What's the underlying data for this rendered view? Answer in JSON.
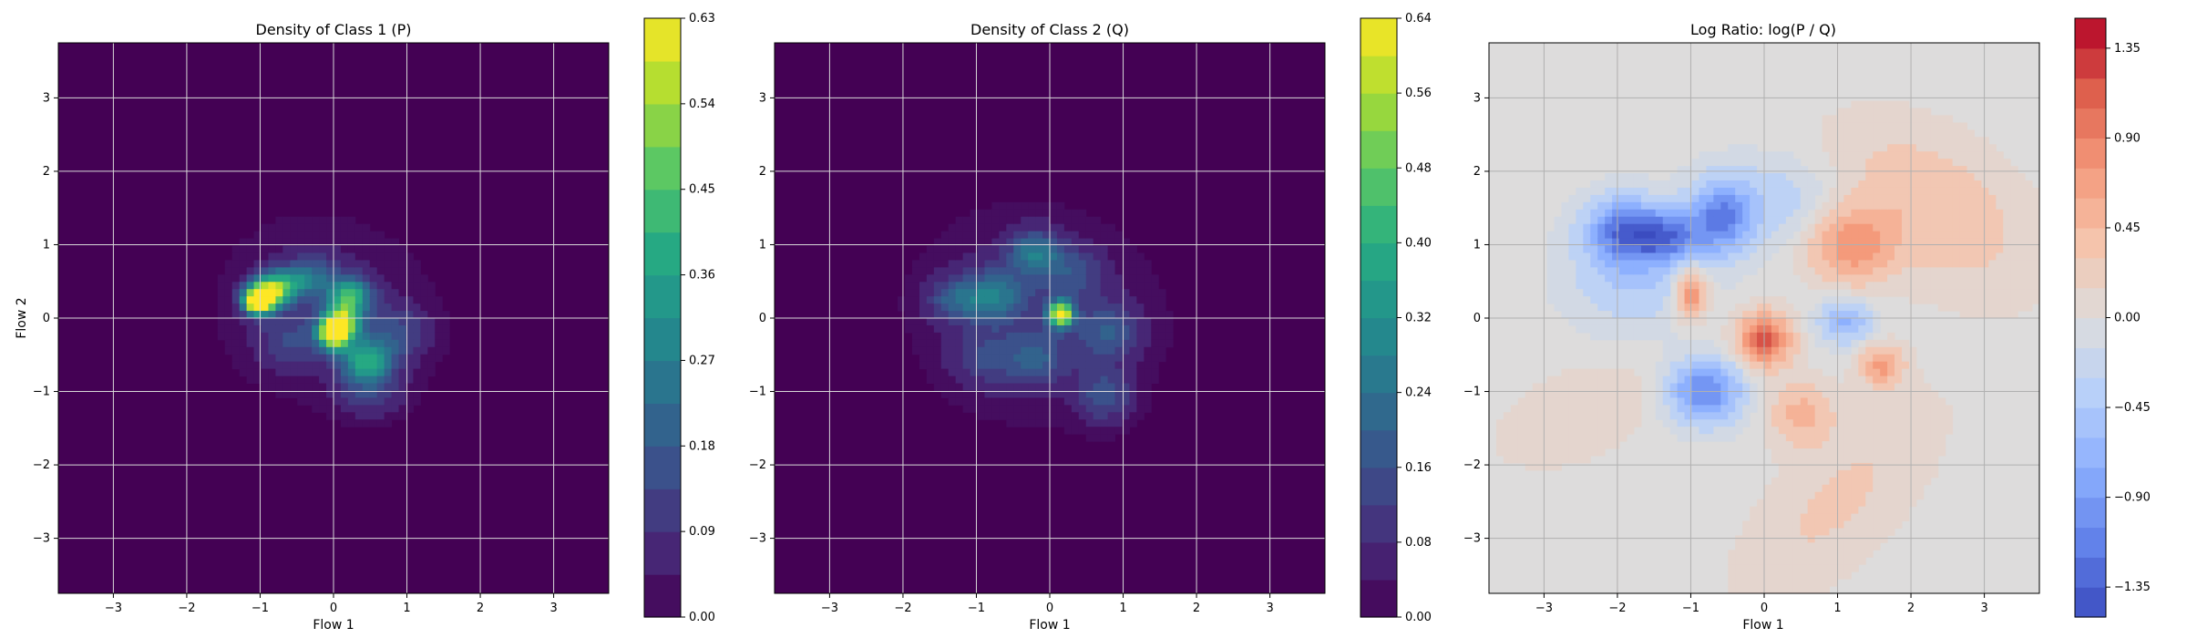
{
  "chart_data": [
    {
      "type": "heatmap",
      "title": "Density of Class 1 (P)",
      "xlabel": "Flow 1",
      "ylabel": "Flow 2",
      "xlim": [
        -3.75,
        3.75
      ],
      "ylim": [
        -3.75,
        3.75
      ],
      "xticks": [
        -3,
        -2,
        -1,
        0,
        1,
        2,
        3
      ],
      "yticks": [
        -3,
        -2,
        -1,
        0,
        1,
        2,
        3
      ],
      "grid": true,
      "colormap": "viridis",
      "colorbar": {
        "min": 0.0,
        "max": 0.63,
        "ticks": [
          "0.00",
          "0.09",
          "0.18",
          "0.27",
          "0.36",
          "0.45",
          "0.54",
          "0.63"
        ]
      },
      "background": "#440154",
      "blobs": [
        {
          "x": -0.1,
          "y": 0.1,
          "sx": 1.0,
          "sy": 0.85,
          "h": 0.06,
          "rot": -0.3
        },
        {
          "x": -0.95,
          "y": 0.3,
          "sx": 0.18,
          "sy": 0.15,
          "h": 0.58,
          "rot": 0
        },
        {
          "x": -1.05,
          "y": 0.2,
          "sx": 0.12,
          "sy": 0.1,
          "h": 0.45,
          "rot": 0
        },
        {
          "x": -0.7,
          "y": 0.45,
          "sx": 0.2,
          "sy": 0.15,
          "h": 0.3,
          "rot": 0
        },
        {
          "x": 0.0,
          "y": -0.2,
          "sx": 0.15,
          "sy": 0.15,
          "h": 0.62,
          "rot": 0
        },
        {
          "x": 0.15,
          "y": 0.0,
          "sx": 0.18,
          "sy": 0.2,
          "h": 0.4,
          "rot": 0
        },
        {
          "x": 0.45,
          "y": -0.6,
          "sx": 0.25,
          "sy": 0.2,
          "h": 0.35,
          "rot": 0
        },
        {
          "x": 0.25,
          "y": 0.35,
          "sx": 0.2,
          "sy": 0.15,
          "h": 0.3,
          "rot": 0
        },
        {
          "x": -0.3,
          "y": 0.55,
          "sx": 0.25,
          "sy": 0.2,
          "h": 0.18,
          "rot": 0
        },
        {
          "x": 0.85,
          "y": -0.2,
          "sx": 0.3,
          "sy": 0.25,
          "h": 0.12,
          "rot": 0
        },
        {
          "x": 0.5,
          "y": -1.05,
          "sx": 0.3,
          "sy": 0.2,
          "h": 0.1,
          "rot": 0
        },
        {
          "x": -0.6,
          "y": -0.3,
          "sx": 0.3,
          "sy": 0.25,
          "h": 0.1,
          "rot": 0
        }
      ]
    },
    {
      "type": "heatmap",
      "title": "Density of Class 2 (Q)",
      "xlabel": "Flow 1",
      "ylabel": "",
      "xlim": [
        -3.75,
        3.75
      ],
      "ylim": [
        -3.75,
        3.75
      ],
      "xticks": [
        -3,
        -2,
        -1,
        0,
        1,
        2,
        3
      ],
      "yticks": [
        -3,
        -2,
        -1,
        0,
        1,
        2,
        3
      ],
      "grid": true,
      "colormap": "viridis",
      "colorbar": {
        "min": 0.0,
        "max": 0.64,
        "ticks": [
          "0.00",
          "0.08",
          "0.16",
          "0.24",
          "0.32",
          "0.40",
          "0.48",
          "0.56",
          "0.64"
        ]
      },
      "background": "#440154",
      "blobs": [
        {
          "x": -0.2,
          "y": 0.05,
          "sx": 1.1,
          "sy": 0.95,
          "h": 0.07,
          "rot": -0.2
        },
        {
          "x": 0.15,
          "y": 0.05,
          "sx": 0.12,
          "sy": 0.12,
          "h": 0.63,
          "rot": 0
        },
        {
          "x": -0.2,
          "y": 0.9,
          "sx": 0.25,
          "sy": 0.2,
          "h": 0.22,
          "rot": 0
        },
        {
          "x": -0.75,
          "y": 0.3,
          "sx": 0.3,
          "sy": 0.25,
          "h": 0.22,
          "rot": 0
        },
        {
          "x": -1.3,
          "y": 0.25,
          "sx": 0.25,
          "sy": 0.2,
          "h": 0.15,
          "rot": 0
        },
        {
          "x": 0.8,
          "y": -0.2,
          "sx": 0.3,
          "sy": 0.25,
          "h": 0.15,
          "rot": 0
        },
        {
          "x": 0.75,
          "y": -1.05,
          "sx": 0.25,
          "sy": 0.25,
          "h": 0.15,
          "rot": 0
        },
        {
          "x": -0.2,
          "y": -0.55,
          "sx": 0.3,
          "sy": 0.25,
          "h": 0.14,
          "rot": 0
        },
        {
          "x": -0.9,
          "y": -0.55,
          "sx": 0.3,
          "sy": 0.25,
          "h": 0.1,
          "rot": 0
        },
        {
          "x": 0.3,
          "y": 0.6,
          "sx": 0.3,
          "sy": 0.25,
          "h": 0.12,
          "rot": 0
        }
      ]
    },
    {
      "type": "heatmap",
      "title": "Log Ratio: log(P / Q)",
      "xlabel": "Flow 1",
      "ylabel": "",
      "xlim": [
        -3.75,
        3.75
      ],
      "ylim": [
        -3.75,
        3.75
      ],
      "xticks": [
        -3,
        -2,
        -1,
        0,
        1,
        2,
        3
      ],
      "yticks": [
        -3,
        -2,
        -1,
        0,
        1,
        2,
        3
      ],
      "grid": true,
      "colormap": "coolwarm",
      "colorbar": {
        "min": -1.5,
        "max": 1.5,
        "ticks": [
          "-1.35",
          "-0.90",
          "-0.45",
          "0.00",
          "0.45",
          "0.90",
          "1.35"
        ],
        "tick_values": [
          -1.35,
          -0.9,
          -0.45,
          0.0,
          0.45,
          0.9,
          1.35
        ]
      },
      "background": "#dddcdc",
      "blobs": [
        {
          "x": -1.9,
          "y": 1.2,
          "sx": 0.35,
          "sy": 0.3,
          "h": -1.1,
          "rot": 0
        },
        {
          "x": -1.3,
          "y": 1.1,
          "sx": 0.3,
          "sy": 0.25,
          "h": -0.9,
          "rot": 0
        },
        {
          "x": -0.6,
          "y": 1.35,
          "sx": 0.3,
          "sy": 0.35,
          "h": -1.0,
          "rot": 0
        },
        {
          "x": -0.8,
          "y": -1.0,
          "sx": 0.35,
          "sy": 0.3,
          "h": -1.1,
          "rot": 0
        },
        {
          "x": 1.1,
          "y": -0.05,
          "sx": 0.25,
          "sy": 0.2,
          "h": -0.7,
          "rot": 0
        },
        {
          "x": -1.8,
          "y": 0.6,
          "sx": 0.6,
          "sy": 0.5,
          "h": -0.45,
          "rot": 0
        },
        {
          "x": 0.1,
          "y": 1.6,
          "sx": 0.6,
          "sy": 0.4,
          "h": -0.35,
          "rot": 0
        },
        {
          "x": 0.0,
          "y": -0.3,
          "sx": 0.25,
          "sy": 0.25,
          "h": 1.2,
          "rot": 0
        },
        {
          "x": -1.0,
          "y": 0.35,
          "sx": 0.15,
          "sy": 0.25,
          "h": 0.95,
          "rot": 0
        },
        {
          "x": 1.2,
          "y": 1.0,
          "sx": 0.4,
          "sy": 0.35,
          "h": 0.8,
          "rot": 0
        },
        {
          "x": 1.6,
          "y": -0.65,
          "sx": 0.2,
          "sy": 0.2,
          "h": 0.7,
          "rot": 0
        },
        {
          "x": 2.3,
          "y": 1.5,
          "sx": 1.0,
          "sy": 0.6,
          "h": 0.4,
          "rot": -0.6
        },
        {
          "x": 0.5,
          "y": -1.3,
          "sx": 0.3,
          "sy": 0.3,
          "h": 0.5,
          "rot": 0
        },
        {
          "x": -2.5,
          "y": -1.3,
          "sx": 0.8,
          "sy": 0.4,
          "h": 0.2,
          "rot": 0.4
        },
        {
          "x": 1.0,
          "y": -2.5,
          "sx": 1.2,
          "sy": 0.5,
          "h": 0.25,
          "rot": 0.8
        }
      ]
    }
  ]
}
